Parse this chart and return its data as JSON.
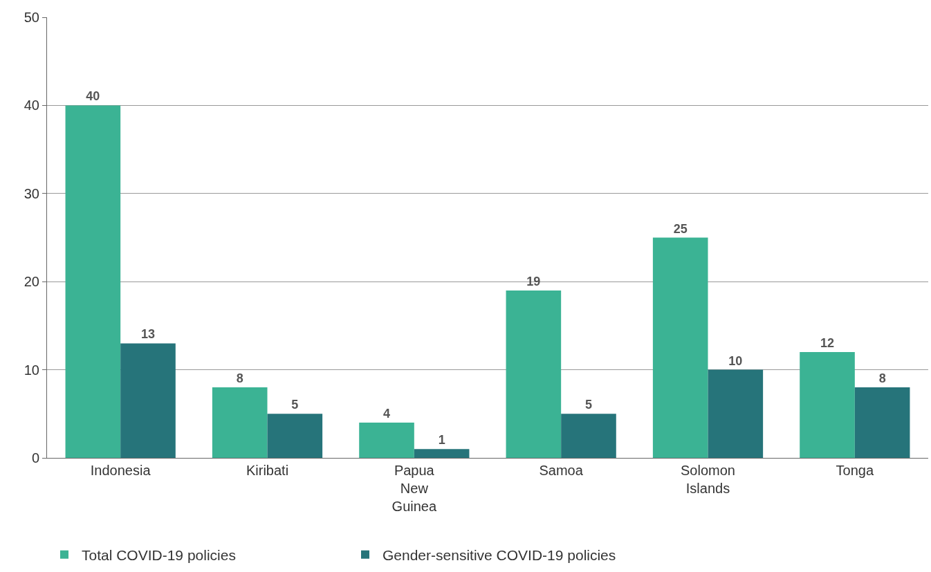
{
  "chart_data": {
    "type": "bar",
    "categories": [
      "Indonesia",
      "Kiribati",
      "Papua New Guinea",
      "Samoa",
      "Solomon Islands",
      "Tonga"
    ],
    "series": [
      {
        "name": "Total COVID-19 policies",
        "color": "#3bb394",
        "values": [
          40,
          8,
          4,
          19,
          25,
          12
        ]
      },
      {
        "name": "Gender-sensitive COVID-19 policies",
        "color": "#26747a",
        "values": [
          13,
          5,
          1,
          5,
          10,
          8
        ]
      }
    ],
    "ylim": [
      0,
      50
    ],
    "yticks": [
      0,
      10,
      20,
      30,
      40,
      50
    ],
    "grid": "y",
    "legend": "bottom left",
    "data_labels": true
  }
}
